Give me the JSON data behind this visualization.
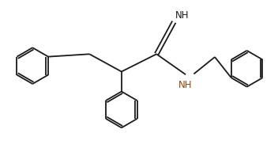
{
  "bg_color": "#ffffff",
  "bond_color": "#1a1a1a",
  "nh_color": "#8B4513",
  "lw": 1.3,
  "r": 0.62,
  "xlim": [
    0,
    9.5
  ],
  "ylim": [
    0,
    5.2
  ]
}
